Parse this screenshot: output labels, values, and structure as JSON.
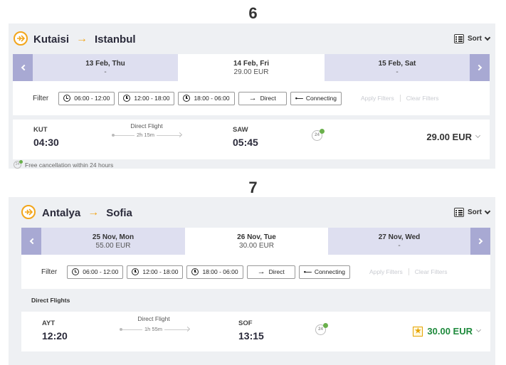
{
  "step1": "6",
  "step2": "7",
  "card1": {
    "from": "Kutaisi",
    "to": "Istanbul",
    "sort_label": "Sort",
    "dates": [
      {
        "day": "13 Feb, Thu",
        "price": "-"
      },
      {
        "day": "14 Feb, Fri",
        "price": "29.00 EUR"
      },
      {
        "day": "15 Feb, Sat",
        "price": "-"
      }
    ],
    "filter_label": "Filter",
    "filters": [
      "06:00 - 12:00",
      "12:00 - 18:00",
      "18:00 - 06:00",
      "Direct",
      "Connecting"
    ],
    "apply_filters": "Apply Filters",
    "clear_filters": "Clear Filters",
    "flight": {
      "from_code": "KUT",
      "dep_time": "04:30",
      "type": "Direct Flight",
      "duration": "2h 15m",
      "to_code": "SAW",
      "arr_time": "05:45",
      "badge": "24",
      "price": "29.00 EUR",
      "price_color": "#333333"
    },
    "free_cancel_badge": "24",
    "free_cancel": "Free cancellation within 24 hours"
  },
  "card2": {
    "from": "Antalya",
    "to": "Sofia",
    "sort_label": "Sort",
    "dates": [
      {
        "day": "25 Nov, Mon",
        "price": "55.00 EUR"
      },
      {
        "day": "26 Nov, Tue",
        "price": "30.00 EUR"
      },
      {
        "day": "27 Nov, Wed",
        "price": "-"
      }
    ],
    "filter_label": "Filter",
    "filters": [
      "06:00 - 12:00",
      "12:00 - 18:00",
      "18:00 - 06:00",
      "Direct",
      "Connecting"
    ],
    "apply_filters": "Apply Filters",
    "clear_filters": "Clear Filters",
    "section_title": "Direct Flights",
    "flight": {
      "from_code": "AYT",
      "dep_time": "12:20",
      "type": "Direct Flight",
      "duration": "1h 55m",
      "to_code": "SOF",
      "arr_time": "13:15",
      "badge": "24",
      "price": "30.00 EUR",
      "price_color": "#1e8a3c"
    }
  },
  "colors": {
    "accent": "#f2a51a",
    "nav": "#a8a9d3",
    "date_inactive": "#dedff0"
  }
}
